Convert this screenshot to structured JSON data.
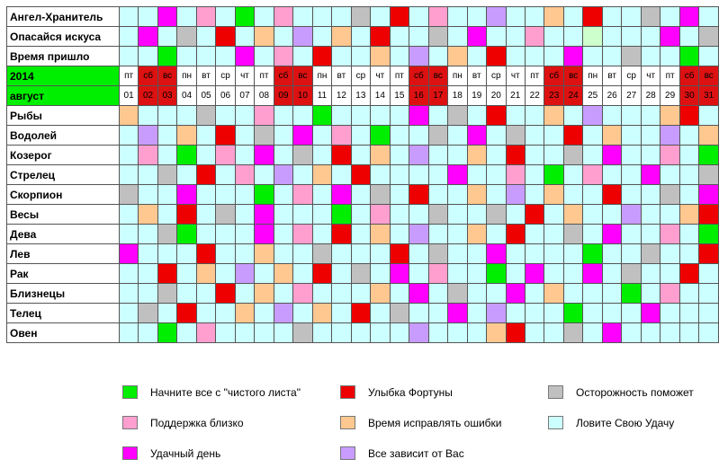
{
  "colors": {
    "green": "#00ee00",
    "red": "#ee0000",
    "gray": "#c0c0c0",
    "pink": "#ff9fd0",
    "peach": "#ffc890",
    "cyan": "#ccffff",
    "magenta": "#ff00ff",
    "lavender": "#c89cff",
    "palegreen": "#ccffcc",
    "weekend_header": "#dd1111",
    "label_highlight": "#00ee00"
  },
  "calendar": {
    "year": "2014",
    "month": "август",
    "weekdays": [
      "пт",
      "сб",
      "вс",
      "пн",
      "вт",
      "ср",
      "чт",
      "пт",
      "сб",
      "вс",
      "пн",
      "вт",
      "ср",
      "чт",
      "пт",
      "сб",
      "вс",
      "пн",
      "вт",
      "ср",
      "чт",
      "пт",
      "сб",
      "вс",
      "пн",
      "вт",
      "ср",
      "чт",
      "пт",
      "сб",
      "вс"
    ],
    "dates": [
      "01",
      "02",
      "03",
      "04",
      "05",
      "06",
      "07",
      "08",
      "09",
      "10",
      "11",
      "12",
      "13",
      "14",
      "15",
      "16",
      "17",
      "18",
      "19",
      "20",
      "21",
      "22",
      "23",
      "24",
      "25",
      "26",
      "27",
      "28",
      "29",
      "30",
      "31"
    ],
    "weekend_index": [
      1,
      2,
      8,
      9,
      15,
      16,
      22,
      23,
      29,
      30
    ]
  },
  "rows": [
    {
      "label": "Ангел-Хранитель",
      "cells": [
        "C",
        "C",
        "M",
        "C",
        "P",
        "C",
        "G",
        "C",
        "P",
        "C",
        "C",
        "C",
        "Y",
        "C",
        "R",
        "C",
        "P",
        "C",
        "C",
        "L",
        "C",
        "C",
        "O",
        "C",
        "R",
        "C",
        "C",
        "Y",
        "C",
        "M",
        "C"
      ]
    },
    {
      "label": "Опасайся искуса",
      "cells": [
        "C",
        "M",
        "C",
        "Y",
        "C",
        "R",
        "C",
        "O",
        "C",
        "L",
        "C",
        "O",
        "C",
        "R",
        "C",
        "C",
        "Y",
        "C",
        "M",
        "C",
        "C",
        "P",
        "C",
        "C",
        "PG",
        "C",
        "C",
        "C",
        "M",
        "C",
        "Y"
      ]
    },
    {
      "label": "Время пришло",
      "cells": [
        "C",
        "C",
        "G",
        "C",
        "C",
        "C",
        "M",
        "C",
        "P",
        "C",
        "R",
        "C",
        "C",
        "O",
        "C",
        "L",
        "C",
        "O",
        "C",
        "R",
        "C",
        "C",
        "C",
        "M",
        "C",
        "C",
        "Y",
        "C",
        "C",
        "G",
        "C"
      ]
    },
    {
      "label": "Рыбы",
      "cells": [
        "O",
        "C",
        "C",
        "C",
        "Y",
        "C",
        "C",
        "P",
        "C",
        "C",
        "G",
        "C",
        "C",
        "C",
        "C",
        "M",
        "C",
        "Y",
        "C",
        "R",
        "C",
        "C",
        "O",
        "C",
        "L",
        "C",
        "C",
        "C",
        "O",
        "R",
        "C"
      ]
    },
    {
      "label": "Водолей",
      "cells": [
        "C",
        "L",
        "C",
        "O",
        "C",
        "R",
        "C",
        "Y",
        "C",
        "M",
        "C",
        "P",
        "C",
        "G",
        "C",
        "C",
        "Y",
        "C",
        "M",
        "C",
        "Y",
        "C",
        "C",
        "R",
        "C",
        "O",
        "C",
        "C",
        "L",
        "C",
        "O"
      ]
    },
    {
      "label": "Козерог",
      "cells": [
        "C",
        "P",
        "C",
        "G",
        "C",
        "P",
        "C",
        "M",
        "C",
        "Y",
        "C",
        "R",
        "C",
        "O",
        "C",
        "L",
        "C",
        "C",
        "O",
        "C",
        "R",
        "C",
        "C",
        "Y",
        "C",
        "M",
        "C",
        "C",
        "P",
        "C",
        "G"
      ]
    },
    {
      "label": "Стрелец",
      "cells": [
        "C",
        "C",
        "Y",
        "C",
        "R",
        "C",
        "P",
        "C",
        "L",
        "C",
        "O",
        "C",
        "R",
        "C",
        "C",
        "C",
        "C",
        "M",
        "C",
        "C",
        "P",
        "C",
        "G",
        "C",
        "P",
        "C",
        "C",
        "M",
        "C",
        "C",
        "Y"
      ]
    },
    {
      "label": "Скорпион",
      "cells": [
        "Y",
        "C",
        "C",
        "M",
        "C",
        "C",
        "C",
        "G",
        "C",
        "P",
        "C",
        "M",
        "C",
        "Y",
        "C",
        "R",
        "C",
        "C",
        "O",
        "C",
        "L",
        "C",
        "O",
        "C",
        "C",
        "R",
        "C",
        "C",
        "Y",
        "C",
        "M"
      ]
    },
    {
      "label": "Весы",
      "cells": [
        "C",
        "O",
        "C",
        "R",
        "C",
        "Y",
        "C",
        "M",
        "C",
        "C",
        "C",
        "G",
        "C",
        "P",
        "C",
        "C",
        "Y",
        "C",
        "C",
        "Y",
        "C",
        "R",
        "C",
        "O",
        "C",
        "C",
        "L",
        "C",
        "C",
        "O",
        "R"
      ]
    },
    {
      "label": "Дева",
      "cells": [
        "C",
        "C",
        "Y",
        "G",
        "C",
        "C",
        "C",
        "M",
        "C",
        "P",
        "C",
        "R",
        "C",
        "O",
        "C",
        "L",
        "C",
        "C",
        "O",
        "C",
        "R",
        "C",
        "C",
        "Y",
        "C",
        "M",
        "C",
        "C",
        "P",
        "C",
        "G"
      ]
    },
    {
      "label": "Лев",
      "cells": [
        "M",
        "C",
        "C",
        "C",
        "R",
        "C",
        "C",
        "O",
        "C",
        "C",
        "Y",
        "C",
        "C",
        "C",
        "R",
        "C",
        "Y",
        "C",
        "C",
        "M",
        "C",
        "C",
        "C",
        "C",
        "G",
        "C",
        "C",
        "Y",
        "C",
        "C",
        "R"
      ]
    },
    {
      "label": "Рак",
      "cells": [
        "C",
        "C",
        "R",
        "C",
        "O",
        "C",
        "L",
        "C",
        "O",
        "C",
        "R",
        "C",
        "Y",
        "C",
        "M",
        "C",
        "P",
        "C",
        "C",
        "G",
        "C",
        "M",
        "C",
        "C",
        "M",
        "C",
        "Y",
        "C",
        "C",
        "R",
        "C"
      ]
    },
    {
      "label": "Близнецы",
      "cells": [
        "C",
        "C",
        "Y",
        "C",
        "C",
        "R",
        "C",
        "O",
        "C",
        "P",
        "C",
        "C",
        "C",
        "O",
        "C",
        "M",
        "C",
        "Y",
        "C",
        "C",
        "M",
        "C",
        "O",
        "C",
        "C",
        "C",
        "G",
        "C",
        "P",
        "C",
        "C"
      ]
    },
    {
      "label": "Телец",
      "cells": [
        "C",
        "Y",
        "C",
        "R",
        "C",
        "C",
        "O",
        "C",
        "L",
        "C",
        "O",
        "C",
        "R",
        "C",
        "Y",
        "C",
        "C",
        "M",
        "C",
        "L",
        "C",
        "C",
        "C",
        "G",
        "C",
        "C",
        "C",
        "M",
        "C",
        "C",
        "C"
      ]
    },
    {
      "label": "Овен",
      "cells": [
        "C",
        "C",
        "G",
        "C",
        "P",
        "C",
        "C",
        "C",
        "C",
        "Y",
        "C",
        "C",
        "C",
        "C",
        "C",
        "L",
        "C",
        "C",
        "C",
        "O",
        "R",
        "C",
        "C",
        "Y",
        "C",
        "M",
        "C",
        "C",
        "C",
        "C",
        "C"
      ]
    }
  ],
  "legend": [
    {
      "key": "G",
      "text": "Начните все с \"чистого листа\""
    },
    {
      "key": "R",
      "text": "Улыбка Фортуны"
    },
    {
      "key": "Y",
      "text": "Осторожность поможет"
    },
    {
      "key": "P",
      "text": "Поддержка близко"
    },
    {
      "key": "O",
      "text": "Время исправлять ошибки"
    },
    {
      "key": "C",
      "text": "Ловите Свою Удачу"
    },
    {
      "key": "M",
      "text": "Удачный день"
    },
    {
      "key": "L",
      "text": "Все зависит от Вас"
    }
  ],
  "color_key": {
    "G": "green",
    "R": "red",
    "Y": "gray",
    "P": "pink",
    "O": "peach",
    "C": "cyan",
    "M": "magenta",
    "L": "lavender",
    "PG": "palegreen"
  }
}
